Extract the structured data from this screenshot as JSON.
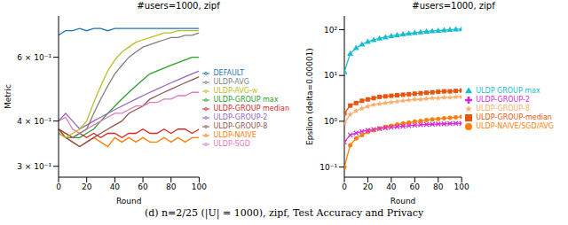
{
  "chart_data": [
    {
      "type": "line",
      "title": "#users=1000, zipf",
      "x_label": "Round",
      "y_label": "Metric",
      "x": [
        0,
        5,
        10,
        15,
        20,
        25,
        30,
        35,
        40,
        45,
        50,
        55,
        60,
        65,
        70,
        75,
        80,
        85,
        90,
        95,
        100
      ],
      "xlim": [
        0,
        100
      ],
      "xticks": [
        0,
        20,
        40,
        60,
        80,
        100
      ],
      "ylim": [
        0.28,
        0.78
      ],
      "yticks": [
        {
          "value": 0.3,
          "label": "3 × 10⁻¹"
        },
        {
          "value": 0.4,
          "label": "4 × 10⁻¹"
        },
        {
          "value": 0.6,
          "label": "6 × 10⁻¹"
        }
      ],
      "log": "y",
      "grid": false,
      "legend": "right",
      "series": [
        {
          "name": "DEFAULT",
          "color": "#1f77b4",
          "values": [
            0.69,
            0.71,
            0.71,
            0.72,
            0.71,
            0.72,
            0.72,
            0.71,
            0.72,
            0.72,
            0.72,
            0.72,
            0.72,
            0.72,
            0.72,
            0.72,
            0.72,
            0.72,
            0.72,
            0.72,
            0.72
          ]
        },
        {
          "name": "ULDP-NAIVE",
          "color": "#ff7f0e",
          "values": [
            0.38,
            0.36,
            0.35,
            0.34,
            0.35,
            0.36,
            0.35,
            0.34,
            0.36,
            0.35,
            0.36,
            0.35,
            0.36,
            0.35,
            0.35,
            0.36,
            0.35,
            0.36,
            0.35,
            0.36,
            0.36
          ]
        },
        {
          "name": "ULDP-GROUP max",
          "color": "#2ca02c",
          "values": [
            0.38,
            0.37,
            0.36,
            0.36,
            0.37,
            0.38,
            0.4,
            0.42,
            0.44,
            0.46,
            0.48,
            0.5,
            0.52,
            0.54,
            0.55,
            0.56,
            0.57,
            0.58,
            0.59,
            0.6,
            0.6
          ]
        },
        {
          "name": "ULDP-GROUP median",
          "color": "#d62728",
          "values": [
            0.38,
            0.37,
            0.36,
            0.37,
            0.36,
            0.37,
            0.36,
            0.37,
            0.37,
            0.36,
            0.37,
            0.37,
            0.38,
            0.37,
            0.37,
            0.38,
            0.37,
            0.38,
            0.38,
            0.37,
            0.38
          ]
        },
        {
          "name": "ULDP-GROUP-2",
          "color": "#9467bd",
          "values": [
            0.4,
            0.42,
            0.4,
            0.38,
            0.39,
            0.4,
            0.41,
            0.42,
            0.43,
            0.44,
            0.45,
            0.46,
            0.47,
            0.48,
            0.49,
            0.5,
            0.51,
            0.52,
            0.53,
            0.54,
            0.55
          ]
        },
        {
          "name": "ULDP-GROUP-8",
          "color": "#8c564b",
          "values": [
            0.38,
            0.36,
            0.35,
            0.34,
            0.35,
            0.36,
            0.37,
            0.38,
            0.39,
            0.4,
            0.42,
            0.43,
            0.44,
            0.46,
            0.47,
            0.48,
            0.49,
            0.5,
            0.51,
            0.52,
            0.53
          ]
        },
        {
          "name": "ULDP-SGD",
          "color": "#e377c2",
          "values": [
            0.4,
            0.41,
            0.38,
            0.37,
            0.38,
            0.39,
            0.4,
            0.41,
            0.42,
            0.42,
            0.43,
            0.44,
            0.44,
            0.45,
            0.45,
            0.46,
            0.46,
            0.47,
            0.47,
            0.48,
            0.48
          ]
        },
        {
          "name": "ULDP-AVG",
          "color": "#7f7f7f",
          "values": [
            0.37,
            0.36,
            0.36,
            0.37,
            0.38,
            0.42,
            0.46,
            0.5,
            0.54,
            0.57,
            0.6,
            0.62,
            0.64,
            0.65,
            0.66,
            0.67,
            0.68,
            0.68,
            0.69,
            0.69,
            0.7
          ]
        },
        {
          "name": "ULDP-AVG-w",
          "color": "#bcbd22",
          "values": [
            0.37,
            0.36,
            0.37,
            0.38,
            0.4,
            0.45,
            0.5,
            0.55,
            0.59,
            0.62,
            0.64,
            0.66,
            0.67,
            0.68,
            0.69,
            0.7,
            0.7,
            0.71,
            0.71,
            0.71,
            0.71
          ]
        }
      ]
    },
    {
      "type": "line",
      "title": "#users=1000, zipf",
      "x_label": "Round",
      "y_label": "Epsilon (delta=0.00001)",
      "x": [
        0,
        5,
        10,
        15,
        20,
        25,
        30,
        35,
        40,
        45,
        50,
        55,
        60,
        65,
        70,
        75,
        80,
        85,
        90,
        95,
        100
      ],
      "xlim": [
        0,
        100
      ],
      "xticks": [
        0,
        20,
        40,
        60,
        80,
        100
      ],
      "ylim": [
        0.06,
        200
      ],
      "yticks": [
        {
          "value": 0.1,
          "label": "10⁻¹"
        },
        {
          "value": 1,
          "label": "10⁰"
        },
        {
          "value": 10,
          "label": "10¹"
        },
        {
          "value": 100,
          "label": "10²"
        }
      ],
      "log": "y",
      "grid": false,
      "legend": "right",
      "series": [
        {
          "name": "ULDP-NAIVE/SGD/AVG",
          "color": "#ff7f0e",
          "marker": "circle",
          "values": [
            0.1,
            0.3,
            0.42,
            0.5,
            0.58,
            0.64,
            0.7,
            0.75,
            0.8,
            0.85,
            0.9,
            0.94,
            0.98,
            1.02,
            1.06,
            1.1,
            1.13,
            1.16,
            1.19,
            1.22,
            1.25
          ]
        },
        {
          "name": "ULDP GROUP max",
          "color": "#17becf",
          "marker": "triangle",
          "values": [
            12,
            30,
            40,
            48,
            55,
            60,
            65,
            69,
            73,
            77,
            80,
            83,
            86,
            89,
            92,
            94,
            96,
            98,
            100,
            102,
            104
          ]
        },
        {
          "name": "ULDP-GROUP-median",
          "color": "#e6550d",
          "marker": "square",
          "values": [
            1.5,
            2.2,
            2.5,
            2.8,
            3.0,
            3.2,
            3.4,
            3.5,
            3.6,
            3.7,
            3.8,
            3.9,
            4.0,
            4.1,
            4.2,
            4.3,
            4.4,
            4.5,
            4.5,
            4.6,
            4.7
          ]
        },
        {
          "name": "ULDP-GROUP-2",
          "color": "#d62ad6",
          "marker": "cross",
          "values": [
            0.35,
            0.5,
            0.55,
            0.6,
            0.63,
            0.66,
            0.69,
            0.72,
            0.74,
            0.76,
            0.78,
            0.8,
            0.82,
            0.84,
            0.85,
            0.86,
            0.87,
            0.88,
            0.89,
            0.9,
            0.9
          ]
        },
        {
          "name": "ULDP-GROUP-8",
          "color": "#fdae6b",
          "marker": "star",
          "values": [
            0.9,
            1.4,
            1.7,
            1.9,
            2.1,
            2.3,
            2.4,
            2.5,
            2.6,
            2.7,
            2.8,
            2.9,
            3.0,
            3.0,
            3.1,
            3.2,
            3.2,
            3.3,
            3.3,
            3.4,
            3.4
          ]
        }
      ]
    }
  ],
  "caption": "(d) n=2/25 (|U| = 1000), zipf, Test Accuracy and Privacy"
}
